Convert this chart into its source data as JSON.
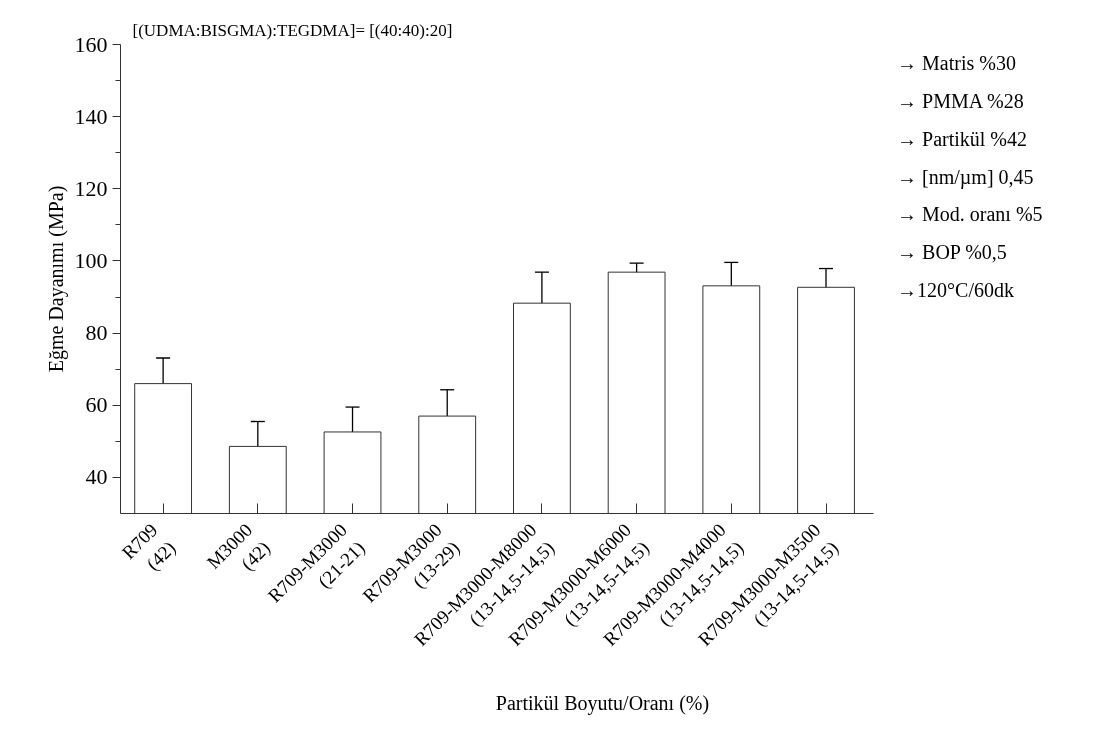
{
  "chart_data": {
    "type": "bar",
    "title": "[(UDMA:BISGMA):TEGDMA]= [(40:40):20]",
    "xlabel": "Partikül Boyutu/Oranı (%)",
    "ylabel": "Eğme Dayanımı (MPa)",
    "categories": [
      "R709\n(42)",
      "M3000\n(42)",
      "R709-M3000\n(21-21)",
      "R709-M3000\n(13-29)",
      "R709-M3000-M8000\n(13-14,5-14,5)",
      "R709-M3000-M6000\n(13-14,5-14,5)",
      "R709-M3000-M4000\n(13-14,5-14,5)",
      "R709-M3000-M3500\n(13-14,5-14,5)"
    ],
    "values": [
      66.0,
      48.6,
      52.6,
      57.0,
      88.3,
      96.9,
      93.1,
      92.7
    ],
    "errors": [
      7.1,
      6.9,
      6.9,
      7.3,
      8.6,
      2.5,
      6.5,
      5.2
    ],
    "color": "#ffffff",
    "ylim": [
      30,
      160
    ],
    "yticks": [
      40,
      {
        "value": 50,
        "label": null
      },
      60,
      {
        "value": 70,
        "label": null
      },
      80,
      {
        "value": 90,
        "label": null
      },
      100,
      {
        "value": 110,
        "label": null
      },
      120,
      {
        "value": 130,
        "label": null
      },
      140,
      {
        "value": 150,
        "label": null
      },
      160
    ],
    "grid": false,
    "annotations": [
      "→ Matris %30",
      "→ PMMA %28",
      "→ Partikül %42",
      "→ [nm/µm] 0,45",
      "→ Mod. oranı %5",
      "→ BOP %0,5",
      "→120°C/60dk"
    ]
  }
}
